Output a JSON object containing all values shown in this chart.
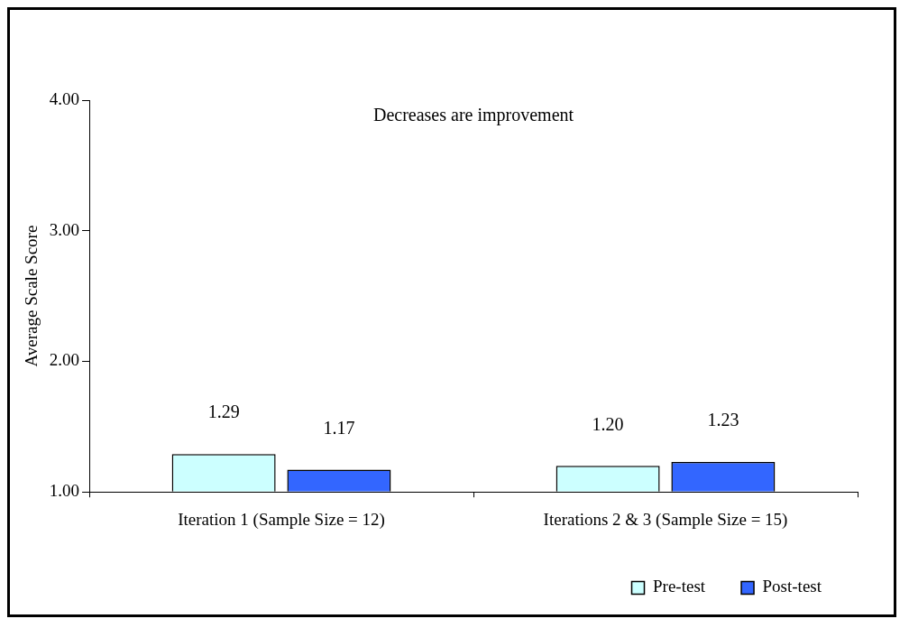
{
  "chart_data": {
    "type": "bar",
    "ylabel": "Average Scale Score",
    "annotations": [
      "Decreases are improvement"
    ],
    "categories": [
      "Iteration 1 (Sample Size = 12)",
      "Iterations 2 & 3 (Sample Size = 15)"
    ],
    "series": [
      {
        "name": "Pre-test",
        "color": "#ccffff",
        "values": [
          1.29,
          1.2
        ],
        "value_labels": [
          "1.29",
          "1.20"
        ]
      },
      {
        "name": "Post-test",
        "color": "#3366ff",
        "values": [
          1.17,
          1.23
        ],
        "value_labels": [
          "1.17",
          "1.23"
        ]
      }
    ],
    "ylim": [
      1,
      4
    ],
    "yticks": [
      {
        "value": 1,
        "label": "1.00"
      },
      {
        "value": 2,
        "label": "2.00"
      },
      {
        "value": 3,
        "label": "3.00"
      },
      {
        "value": 4,
        "label": "4.00"
      }
    ],
    "grid": false,
    "legend": "bottom right"
  }
}
